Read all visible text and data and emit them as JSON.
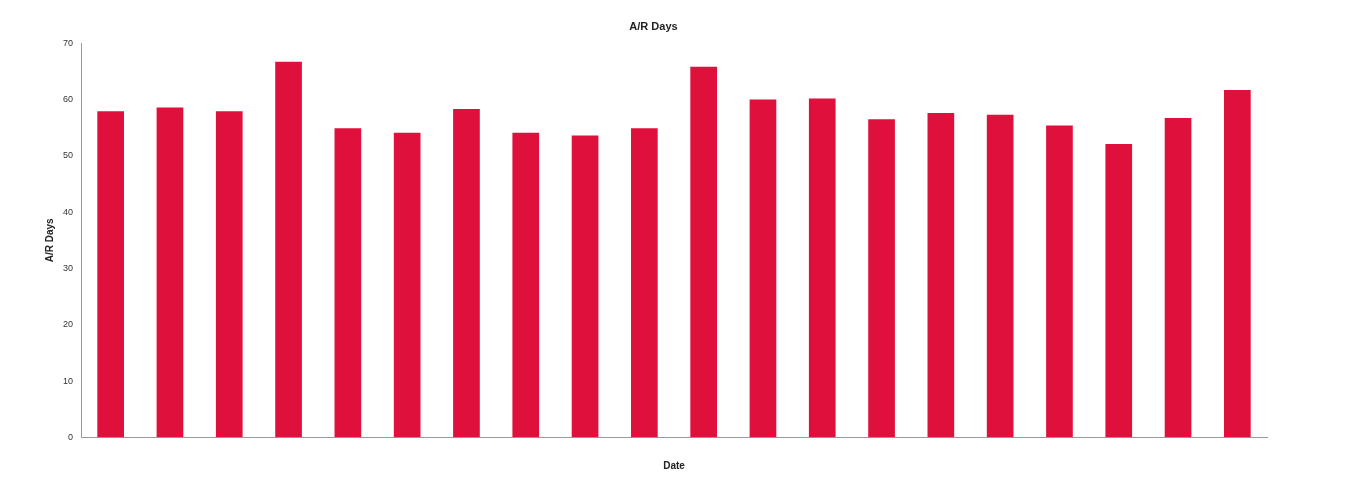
{
  "chart_data": {
    "type": "bar",
    "title": "A/R Days",
    "xlabel": "Date",
    "ylabel": "A/R Days",
    "categories": [
      null,
      null,
      null,
      null,
      null,
      null,
      null,
      null,
      null,
      null,
      null,
      null,
      null,
      null,
      null,
      null,
      null,
      null,
      null,
      null
    ],
    "values": [
      57.9,
      58.6,
      57.9,
      66.7,
      54.9,
      54.1,
      58.3,
      54.1,
      53.6,
      54.9,
      65.8,
      60.0,
      60.2,
      56.5,
      57.6,
      57.3,
      55.4,
      52.1,
      56.7,
      61.7
    ],
    "color": "#e0103c",
    "ylim": [
      0,
      70
    ],
    "yticks": [
      0,
      10,
      20,
      30,
      40,
      50,
      60,
      70
    ],
    "grid": false,
    "legend": false
  }
}
